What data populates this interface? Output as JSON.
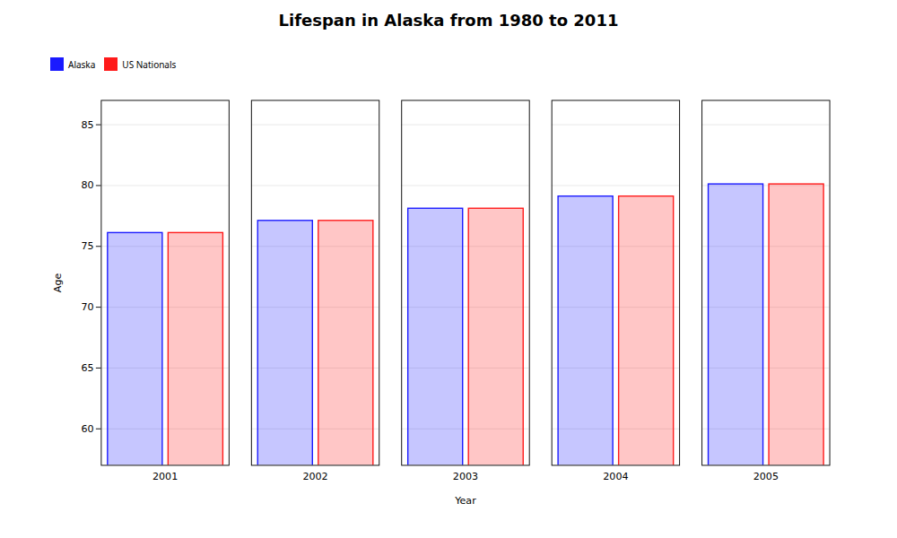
{
  "chart_data": {
    "type": "bar",
    "title": "Lifespan in Alaska from 1980 to 2011",
    "xlabel": "Year",
    "ylabel": "Age",
    "categories": [
      "2001",
      "2002",
      "2003",
      "2004",
      "2005"
    ],
    "series": [
      {
        "name": "Alaska",
        "color": "#1a1aff",
        "values": [
          76.1,
          77.1,
          78.1,
          79.1,
          80.1
        ]
      },
      {
        "name": "US Nationals",
        "color": "#ff1a1a",
        "values": [
          76.1,
          77.1,
          78.1,
          79.1,
          80.1
        ]
      }
    ],
    "ylim": [
      57,
      87
    ],
    "yticks": [
      60,
      65,
      70,
      75,
      80,
      85
    ],
    "grid": true,
    "legend": "top"
  }
}
